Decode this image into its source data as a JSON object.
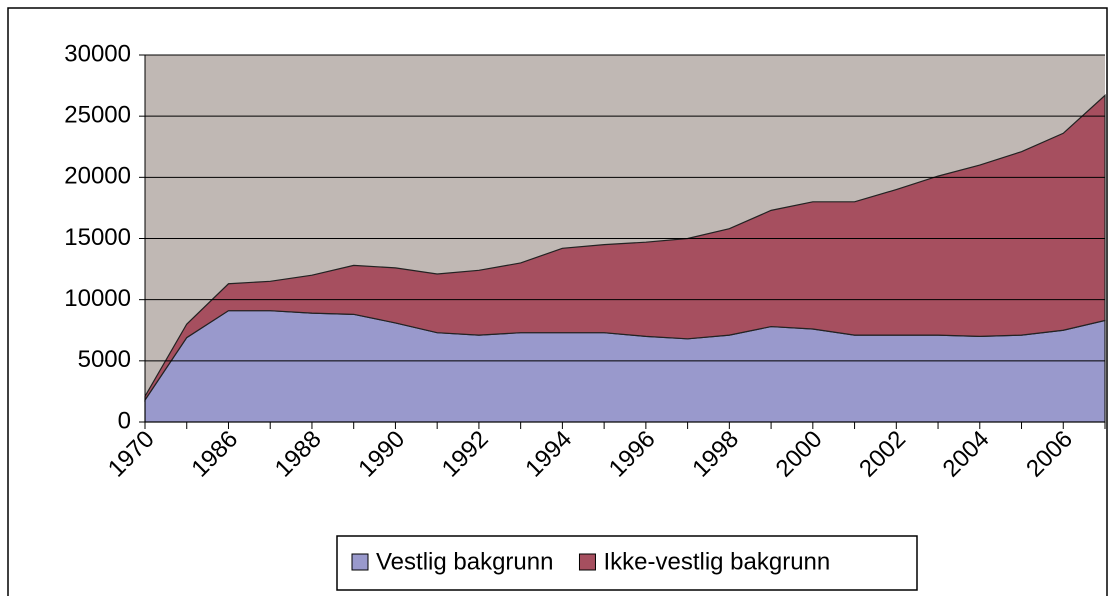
{
  "chart_data": {
    "type": "stacked_area",
    "categories": [
      "1970",
      null,
      "1986",
      null,
      "1988",
      null,
      "1990",
      null,
      "1992",
      null,
      "1994",
      null,
      "1996",
      null,
      "1998",
      null,
      "2000",
      null,
      "2002",
      null,
      "2004",
      null,
      "2006",
      null
    ],
    "series": [
      {
        "name": "Vestlig bakgrunn",
        "color": "#9999cc",
        "values": [
          1800,
          6900,
          9100,
          9100,
          8900,
          8800,
          8100,
          7300,
          7100,
          7300,
          7300,
          7300,
          7000,
          6800,
          7100,
          7800,
          7600,
          7100,
          7100,
          7100,
          7000,
          7100,
          7500,
          8300
        ]
      },
      {
        "name": "Ikke-vestlig bakgrunn",
        "color": "#a64f5f",
        "values": [
          300,
          1100,
          2200,
          2400,
          3100,
          4000,
          4500,
          4800,
          5300,
          5700,
          6900,
          7200,
          7700,
          8200,
          8700,
          9500,
          10400,
          10900,
          11900,
          13000,
          14000,
          15000,
          16100,
          18400
        ]
      }
    ],
    "ylim": [
      0,
      30000
    ],
    "yticks": [
      0,
      5000,
      10000,
      15000,
      20000,
      25000,
      30000
    ],
    "grid": true,
    "legend": "bottom",
    "plot_background": "#c0b8b4"
  }
}
